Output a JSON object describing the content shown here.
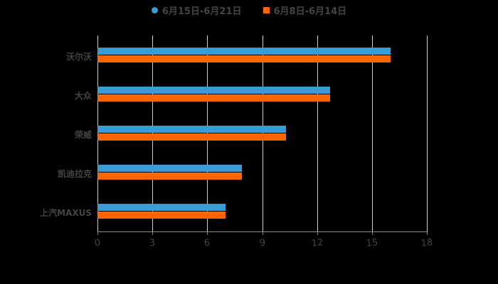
{
  "legend": [
    {
      "label": "6月15日-6月21日",
      "color": "#3a9bd5",
      "shape": "circle"
    },
    {
      "label": "6月8日-6月14日",
      "color": "#ff6600",
      "shape": "square"
    }
  ],
  "axis": {
    "ticks": [
      "0",
      "3",
      "6",
      "9",
      "12",
      "15",
      "18"
    ]
  },
  "categories": [
    "沃尔沃",
    "大众",
    "荣威",
    "凯迪拉克",
    "上汽MAXUS"
  ],
  "chart_data": {
    "type": "bar",
    "orientation": "horizontal",
    "title": "",
    "xlabel": "",
    "ylabel": "",
    "categories": [
      "沃尔沃",
      "大众",
      "荣威",
      "凯迪拉克",
      "上汽MAXUS"
    ],
    "series": [
      {
        "name": "6月15日-6月21日",
        "color": "#3a9bd5",
        "values": [
          16.0,
          12.7,
          10.3,
          7.9,
          7.0
        ]
      },
      {
        "name": "6月8日-6月14日",
        "color": "#ff6600",
        "values": [
          16.0,
          12.7,
          10.3,
          7.9,
          7.0
        ]
      }
    ],
    "xlim": [
      0,
      18
    ],
    "xticks": [
      0,
      3,
      6,
      9,
      12,
      15,
      18
    ],
    "grid": true,
    "legend_position": "top"
  }
}
